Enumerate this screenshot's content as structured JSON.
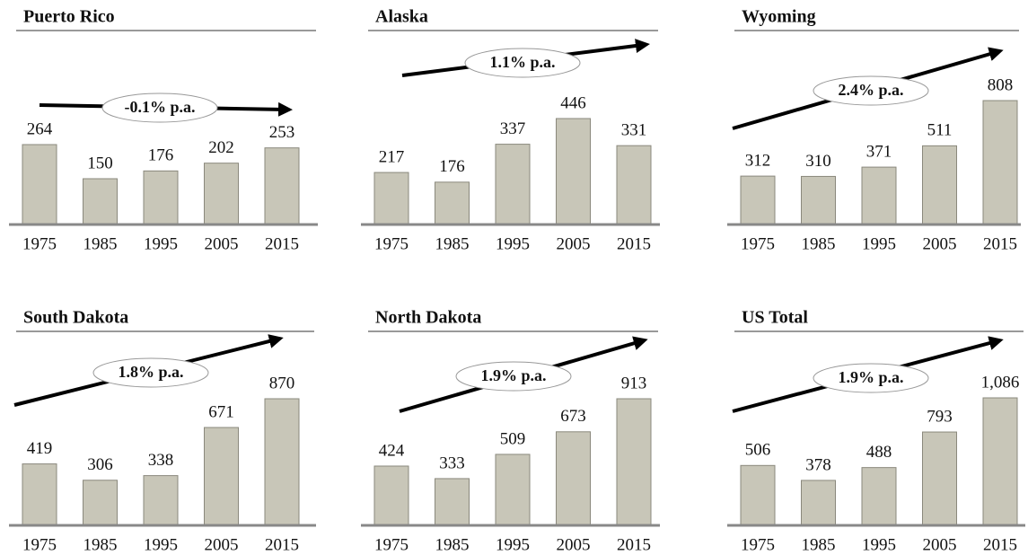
{
  "chart_data": [
    {
      "type": "bar",
      "title": "Puerto Rico",
      "annotation": "-0.1% p.a.",
      "color": "#c8c6b8",
      "categories": [
        "1975",
        "1985",
        "1995",
        "2005",
        "2015"
      ],
      "values": [
        264,
        150,
        176,
        202,
        253
      ]
    },
    {
      "type": "bar",
      "title": "Alaska",
      "annotation": "1.1% p.a.",
      "color": "#c8c6b8",
      "categories": [
        "1975",
        "1985",
        "1995",
        "2005",
        "2015"
      ],
      "values": [
        217,
        176,
        337,
        446,
        331
      ]
    },
    {
      "type": "bar",
      "title": "Wyoming",
      "annotation": "2.4% p.a.",
      "color": "#c8c6b8",
      "categories": [
        "1975",
        "1985",
        "1995",
        "2005",
        "2015"
      ],
      "values": [
        312,
        310,
        371,
        511,
        808
      ]
    },
    {
      "type": "bar",
      "title": "South Dakota",
      "annotation": "1.8% p.a.",
      "color": "#c8c6b8",
      "categories": [
        "1975",
        "1985",
        "1995",
        "2005",
        "2015"
      ],
      "values": [
        419,
        306,
        338,
        671,
        870
      ]
    },
    {
      "type": "bar",
      "title": "North Dakota",
      "annotation": "1.9% p.a.",
      "color": "#c8c6b8",
      "categories": [
        "1975",
        "1985",
        "1995",
        "2005",
        "2015"
      ],
      "values": [
        424,
        333,
        509,
        673,
        913
      ]
    },
    {
      "type": "bar",
      "title": "US Total",
      "annotation": "1.9% p.a.",
      "color": "#c8c6b8",
      "categories": [
        "1975",
        "1985",
        "1995",
        "2005",
        "2015"
      ],
      "values": [
        506,
        378,
        488,
        793,
        1086
      ],
      "value_labels": [
        "506",
        "378",
        "488",
        "793",
        "1,086"
      ]
    }
  ]
}
